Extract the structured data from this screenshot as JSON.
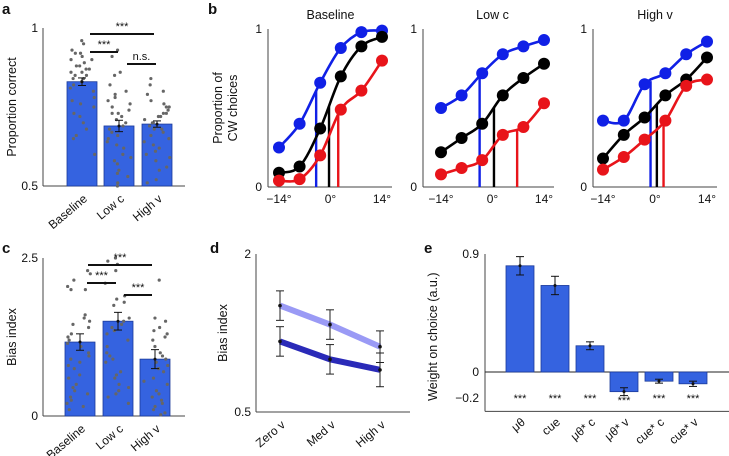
{
  "chart_data": [
    {
      "panel": "a",
      "type": "bar",
      "ylabel": "Proportion correct",
      "ylim": [
        0.5,
        1
      ],
      "yticks": [
        "0.5",
        "1"
      ],
      "categories": [
        "Baseline",
        "Low c",
        "High v"
      ],
      "values": [
        0.83,
        0.69,
        0.696
      ],
      "errors": [
        0.012,
        0.018,
        0.01
      ],
      "bar_color": "#3563e0",
      "points": [
        [
          0.96,
          0.95,
          0.93,
          0.92,
          0.92,
          0.91,
          0.9,
          0.9,
          0.89,
          0.88,
          0.88,
          0.87,
          0.87,
          0.86,
          0.86,
          0.85,
          0.85,
          0.84,
          0.84,
          0.83,
          0.82,
          0.81,
          0.8,
          0.78,
          0.77,
          0.76,
          0.75,
          0.73,
          0.72,
          0.7,
          0.68,
          0.66,
          0.65,
          0.6
        ],
        [
          0.93,
          0.91,
          0.86,
          0.85,
          0.82,
          0.8,
          0.79,
          0.78,
          0.77,
          0.76,
          0.75,
          0.74,
          0.73,
          0.73,
          0.72,
          0.71,
          0.7,
          0.69,
          0.68,
          0.67,
          0.66,
          0.65,
          0.64,
          0.63,
          0.62,
          0.6,
          0.59,
          0.58,
          0.57,
          0.55,
          0.54,
          0.53,
          0.51,
          0.5
        ],
        [
          0.84,
          0.82,
          0.8,
          0.79,
          0.77,
          0.76,
          0.75,
          0.75,
          0.74,
          0.73,
          0.73,
          0.72,
          0.72,
          0.71,
          0.7,
          0.7,
          0.69,
          0.68,
          0.68,
          0.67,
          0.66,
          0.65,
          0.64,
          0.63,
          0.62,
          0.61,
          0.6,
          0.59,
          0.58,
          0.56,
          0.55,
          0.52,
          0.51
        ]
      ],
      "comparisons": [
        {
          "from": "Baseline",
          "to": "High v",
          "label": "***"
        },
        {
          "from": "Baseline",
          "to": "Low c",
          "label": "***"
        },
        {
          "from": "Low c",
          "to": "High v",
          "label": "n.s."
        }
      ]
    },
    {
      "panel": "b",
      "type": "line",
      "ylabel": "Proportion of CW choices",
      "ylabel_lines": [
        "Proportion of",
        "CW choices"
      ],
      "ylim": [
        0,
        1
      ],
      "yticks": [
        "0",
        "1"
      ],
      "xlim": [
        -14,
        14
      ],
      "xticks": [
        "−14°",
        "0°",
        "14°"
      ],
      "x": [
        -14,
        -8.4,
        -2.8,
        2.8,
        8.4,
        14
      ],
      "series_colors": [
        "#1020e6",
        "#000000",
        "#e8141a"
      ],
      "subplots": [
        {
          "title": "Baseline",
          "series": [
            {
              "values": [
                0.25,
                0.4,
                0.66,
                0.88,
                0.98,
                0.99
              ],
              "threshold": -3.9
            },
            {
              "values": [
                0.09,
                0.13,
                0.37,
                0.7,
                0.89,
                0.95
              ],
              "threshold": -0.4
            },
            {
              "values": [
                0.04,
                0.05,
                0.2,
                0.49,
                0.61,
                0.8
              ],
              "threshold": 2.1
            }
          ]
        },
        {
          "title": "Low c",
          "series": [
            {
              "values": [
                0.5,
                0.58,
                0.72,
                0.84,
                0.89,
                0.93
              ],
              "threshold": -3.5
            },
            {
              "values": [
                0.22,
                0.31,
                0.4,
                0.58,
                0.69,
                0.78
              ],
              "threshold": 0.4
            },
            {
              "values": [
                0.08,
                0.12,
                0.17,
                0.33,
                0.38,
                0.53
              ],
              "threshold": 6.7
            }
          ]
        },
        {
          "title": "High v",
          "series": [
            {
              "values": [
                0.42,
                0.42,
                0.65,
                0.72,
                0.84,
                0.92
              ],
              "threshold": -1.2
            },
            {
              "values": [
                0.18,
                0.33,
                0.44,
                0.58,
                0.68,
                0.82
              ],
              "threshold": 0.5
            },
            {
              "values": [
                0.11,
                0.19,
                0.3,
                0.42,
                0.64,
                0.68
              ],
              "threshold": 2.3
            }
          ]
        }
      ]
    },
    {
      "panel": "c",
      "type": "bar",
      "ylabel": "Bias index",
      "ylim": [
        0,
        2.5
      ],
      "yticks": [
        "0",
        "2.5"
      ],
      "categories": [
        "Baseline",
        "Low c",
        "High v"
      ],
      "values": [
        1.17,
        1.5,
        0.9
      ],
      "errors": [
        0.13,
        0.14,
        0.15
      ],
      "bar_color": "#3563e0",
      "points": [
        [
          2.3,
          2.25,
          2.15,
          2.05,
          2.0,
          2.0,
          1.6,
          1.55,
          1.5,
          1.45,
          1.4,
          1.3,
          1.25,
          1.2,
          1.15,
          1.1,
          1.0,
          0.95,
          0.9,
          0.85,
          0.8,
          0.75,
          0.65,
          0.6,
          0.5,
          0.45,
          0.4,
          0.35,
          0.3,
          0.25,
          0.2,
          0.15,
          0.1
        ],
        [
          2.5,
          2.45,
          2.4,
          2.3,
          2.1,
          1.9,
          1.85,
          1.8,
          1.75,
          1.55,
          1.5,
          1.45,
          1.4,
          1.35,
          1.3,
          1.2,
          1.1,
          1.0,
          0.95,
          0.9,
          0.85,
          0.7,
          0.65,
          0.6,
          0.5,
          0.45,
          0.4,
          0.35,
          0.3,
          0.2
        ],
        [
          2.15,
          1.55,
          1.5,
          1.4,
          1.35,
          1.3,
          1.25,
          1.2,
          1.1,
          1.0,
          0.95,
          0.9,
          0.85,
          0.8,
          0.75,
          0.7,
          0.6,
          0.55,
          0.5,
          0.4,
          0.35,
          0.3,
          0.25,
          0.2,
          0.15,
          0.1,
          0.05,
          0.02
        ]
      ],
      "comparisons": [
        {
          "from": "Baseline",
          "to": "High v",
          "label": "***"
        },
        {
          "from": "Baseline",
          "to": "Low c",
          "label": "***"
        },
        {
          "from": "Low c",
          "to": "High v",
          "label": "***"
        }
      ]
    },
    {
      "panel": "d",
      "type": "line",
      "ylabel": "Bias index",
      "ylim": [
        0.5,
        2
      ],
      "yticks": [
        "0.5",
        "2"
      ],
      "categories": [
        "Zero v",
        "Med v",
        "High v"
      ],
      "series_colors": [
        "#9a9af5",
        "#2a2ab8"
      ],
      "series": [
        {
          "values": [
            1.51,
            1.33,
            1.12
          ],
          "errors": [
            0.14,
            0.14,
            0.15
          ]
        },
        {
          "values": [
            1.17,
            1.0,
            0.9
          ],
          "errors": [
            0.14,
            0.14,
            0.16
          ]
        }
      ]
    },
    {
      "panel": "e",
      "type": "bar",
      "ylabel": "Weight on choice (a.u.)",
      "ylim": [
        -0.3,
        0.9
      ],
      "yticks": [
        "−0.2",
        "0",
        "0.9"
      ],
      "categories": [
        "μθ",
        "cue",
        "μθ* c",
        "μθ* v",
        "cue* c",
        "cue* v"
      ],
      "values": [
        0.81,
        0.66,
        0.2,
        -0.15,
        -0.07,
        -0.09
      ],
      "errors": [
        0.07,
        0.07,
        0.03,
        0.03,
        0.015,
        0.02
      ],
      "significance": [
        "***",
        "***",
        "***",
        "***",
        "***",
        "***"
      ],
      "bar_color": "#3563e0"
    }
  ]
}
